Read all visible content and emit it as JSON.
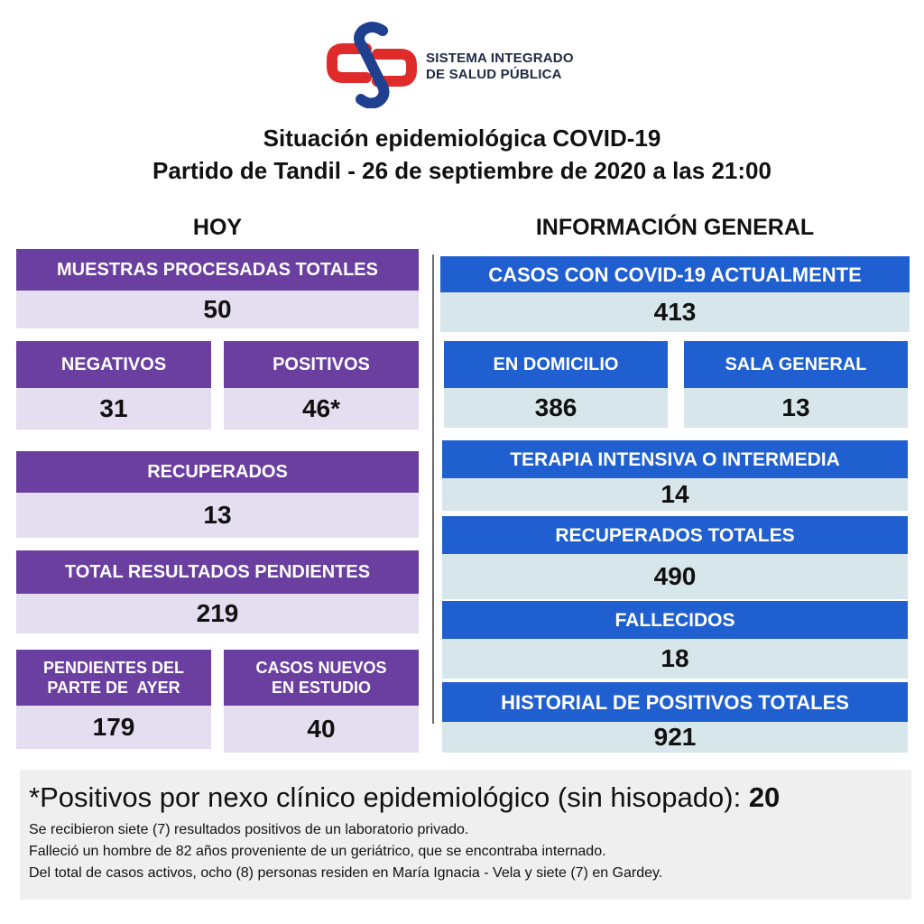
{
  "logo": {
    "line1": "SISTEMA INTEGRADO",
    "line2": "DE SALUD PÚBLICA"
  },
  "title": {
    "line1": "Situación epidemiológica COVID-19",
    "line2": "Partido de Tandil - 26 de septiembre de 2020 a las 21:00"
  },
  "hoy": {
    "heading": "HOY",
    "muestras": {
      "label": "MUESTRAS PROCESADAS TOTALES",
      "value": "50"
    },
    "negativos": {
      "label": "NEGATIVOS",
      "value": "31"
    },
    "positivos": {
      "label": "POSITIVOS",
      "value": "46*"
    },
    "recuperados": {
      "label": "RECUPERADOS",
      "value": "13"
    },
    "pendientes_total": {
      "label": "TOTAL RESULTADOS PENDIENTES",
      "value": "219"
    },
    "pendientes_ayer": {
      "label_line1": "PENDIENTES DEL",
      "label_line2": "PARTE DE  AYER",
      "value": "179"
    },
    "casos_nuevos": {
      "label_line1": "CASOS NUEVOS",
      "label_line2": "EN ESTUDIO",
      "value": "40"
    }
  },
  "general": {
    "heading": "INFORMACIÓN GENERAL",
    "casos_actuales": {
      "label": "CASOS CON COVID-19 ACTUALMENTE",
      "value": "413"
    },
    "domicilio": {
      "label": "EN DOMICILIO",
      "value": "386"
    },
    "sala_general": {
      "label": "SALA GENERAL",
      "value": "13"
    },
    "terapia": {
      "label": "TERAPIA INTENSIVA O INTERMEDIA",
      "value": "14"
    },
    "recuperados_totales": {
      "label": "RECUPERADOS TOTALES",
      "value": "490"
    },
    "fallecidos": {
      "label": "FALLECIDOS",
      "value": "18"
    },
    "historial": {
      "label": "HISTORIAL DE POSITIVOS TOTALES",
      "value": "921"
    }
  },
  "footer": {
    "footnote_text": "*Positivos por nexo clínico epidemiológico (sin hisopado): ",
    "footnote_value": "20",
    "notes": [
      "Se recibieron siete (7) resultados positivos de un laboratorio privado.",
      "Falleció un hombre de 82 años proveniente de un geriátrico, que se encontraba internado.",
      "Del total de casos activos, ocho (8) personas residen en María Ignacia - Vela y siete (7) en Gardey."
    ]
  },
  "colors": {
    "purple": "#6a3fa0",
    "purple_light": "#e4def0",
    "blue": "#1f5fcf",
    "blue_light": "#d7e6ea"
  }
}
